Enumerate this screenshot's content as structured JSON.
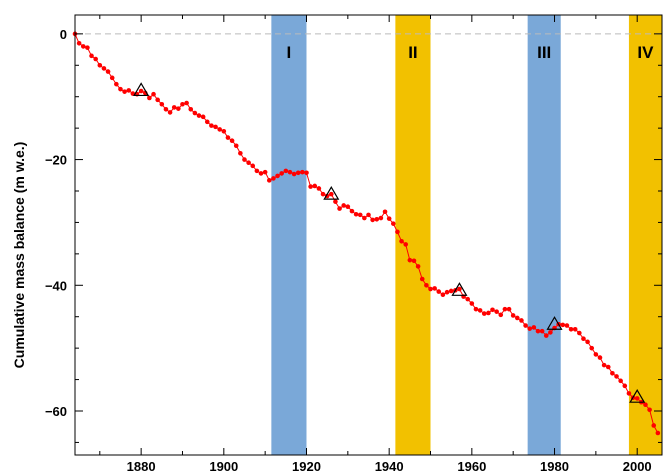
{
  "chart_data": {
    "type": "line",
    "title": "",
    "xlabel": "",
    "ylabel": "Cumulative mass balance  (m w.e.)",
    "xlim": [
      1864,
      2006
    ],
    "ylim": [
      -67,
      3
    ],
    "grid": false,
    "x_ticks": [
      1880,
      1900,
      1920,
      1940,
      1960,
      1980,
      2000
    ],
    "y_ticks": [
      0,
      -20,
      -40,
      -60
    ],
    "x_tick_labels": [
      "1880",
      "1900",
      "1920",
      "1940",
      "1960",
      "1980",
      "2000"
    ],
    "y_tick_labels": [
      "0",
      "−20",
      "−40",
      "−60"
    ],
    "reference_line": {
      "y": 0,
      "style": "dashed",
      "color": "#bbbbbb"
    },
    "series": [
      {
        "color": "#ff0000",
        "marker": "dot",
        "x": [
          1864,
          1865,
          1866,
          1867,
          1868,
          1869,
          1870,
          1871,
          1872,
          1873,
          1874,
          1875,
          1876,
          1877,
          1878,
          1879,
          1880,
          1881,
          1882,
          1883,
          1884,
          1885,
          1886,
          1887,
          1888,
          1889,
          1890,
          1891,
          1892,
          1893,
          1894,
          1895,
          1896,
          1897,
          1898,
          1899,
          1900,
          1901,
          1902,
          1903,
          1904,
          1905,
          1906,
          1907,
          1908,
          1909,
          1910,
          1911,
          1912,
          1913,
          1914,
          1915,
          1916,
          1917,
          1918,
          1919,
          1920,
          1921,
          1922,
          1923,
          1924,
          1925,
          1926,
          1927,
          1928,
          1929,
          1930,
          1931,
          1932,
          1933,
          1934,
          1935,
          1936,
          1937,
          1938,
          1939,
          1940,
          1941,
          1942,
          1943,
          1944,
          1945,
          1946,
          1947,
          1948,
          1949,
          1950,
          1951,
          1952,
          1953,
          1954,
          1955,
          1956,
          1957,
          1958,
          1959,
          1960,
          1961,
          1962,
          1963,
          1964,
          1965,
          1966,
          1967,
          1968,
          1969,
          1970,
          1971,
          1972,
          1973,
          1974,
          1975,
          1976,
          1977,
          1978,
          1979,
          1980,
          1981,
          1982,
          1983,
          1984,
          1985,
          1986,
          1987,
          1988,
          1989,
          1990,
          1991,
          1992,
          1993,
          1994,
          1995,
          1996,
          1997,
          1998,
          1999,
          2000,
          2001,
          2002,
          2003,
          2004,
          2005
        ],
        "y": [
          0,
          -1.5,
          -2,
          -2.2,
          -3.5,
          -4,
          -5,
          -5.5,
          -6,
          -7,
          -8,
          -8.8,
          -9.2,
          -9,
          -9.5,
          -9.6,
          -9.1,
          -9.4,
          -10.2,
          -9.6,
          -10.5,
          -11.2,
          -12,
          -12.5,
          -11.7,
          -11.9,
          -11.2,
          -11,
          -12,
          -12.6,
          -13,
          -13.2,
          -14,
          -14.6,
          -14.8,
          -15.2,
          -15.5,
          -16.5,
          -17,
          -17.8,
          -19,
          -20,
          -20.5,
          -21,
          -21.8,
          -22.2,
          -22,
          -23.3,
          -23,
          -22.6,
          -22.2,
          -21.8,
          -22,
          -22.3,
          -22.1,
          -22,
          -22.1,
          -24.3,
          -24.2,
          -24.6,
          -25.5,
          -25.8,
          -25.5,
          -26.7,
          -27.8,
          -27.3,
          -27.5,
          -28.2,
          -28.7,
          -28.8,
          -29.3,
          -28.8,
          -29.6,
          -29.5,
          -29.3,
          -28.3,
          -29.4,
          -30.2,
          -31.5,
          -33,
          -33.5,
          -36,
          -36.1,
          -37,
          -39,
          -40,
          -40.6,
          -40.5,
          -41,
          -41.5,
          -41.1,
          -40.9,
          -40.8,
          -40.6,
          -41.8,
          -42.2,
          -42.9,
          -43.8,
          -44,
          -44.5,
          -44.4,
          -43.9,
          -44.2,
          -44.7,
          -43.8,
          -43.8,
          -44.8,
          -45.2,
          -45.6,
          -46.4,
          -46.9,
          -46.7,
          -47.3,
          -47.3,
          -48,
          -47.5,
          -46.8,
          -46.2,
          -46.3,
          -46.4,
          -47,
          -47,
          -47.6,
          -48.5,
          -49,
          -50,
          -51,
          -51.5,
          -52.7,
          -53,
          -54,
          -54.5,
          -55.2,
          -56,
          -57.2,
          -57.9,
          -58,
          -58.6,
          -59,
          -59.8,
          -62.3,
          -63.5
        ]
      }
    ],
    "triangle_markers": [
      {
        "x": 1880,
        "y": -9
      },
      {
        "x": 1926,
        "y": -25.5
      },
      {
        "x": 1957,
        "y": -40.8
      },
      {
        "x": 1980,
        "y": -46.2
      },
      {
        "x": 2000,
        "y": -57.8
      }
    ],
    "bands": [
      {
        "label": "I",
        "x_start": 1911.5,
        "x_end": 1920,
        "color": "#7aa8d8"
      },
      {
        "label": "II",
        "x_start": 1941.5,
        "x_end": 1950,
        "color": "#f2c100"
      },
      {
        "label": "III",
        "x_start": 1973.5,
        "x_end": 1981.5,
        "color": "#7aa8d8"
      },
      {
        "label": "IV",
        "x_start": 1998,
        "x_end": 2006,
        "color": "#f2c100"
      }
    ]
  }
}
